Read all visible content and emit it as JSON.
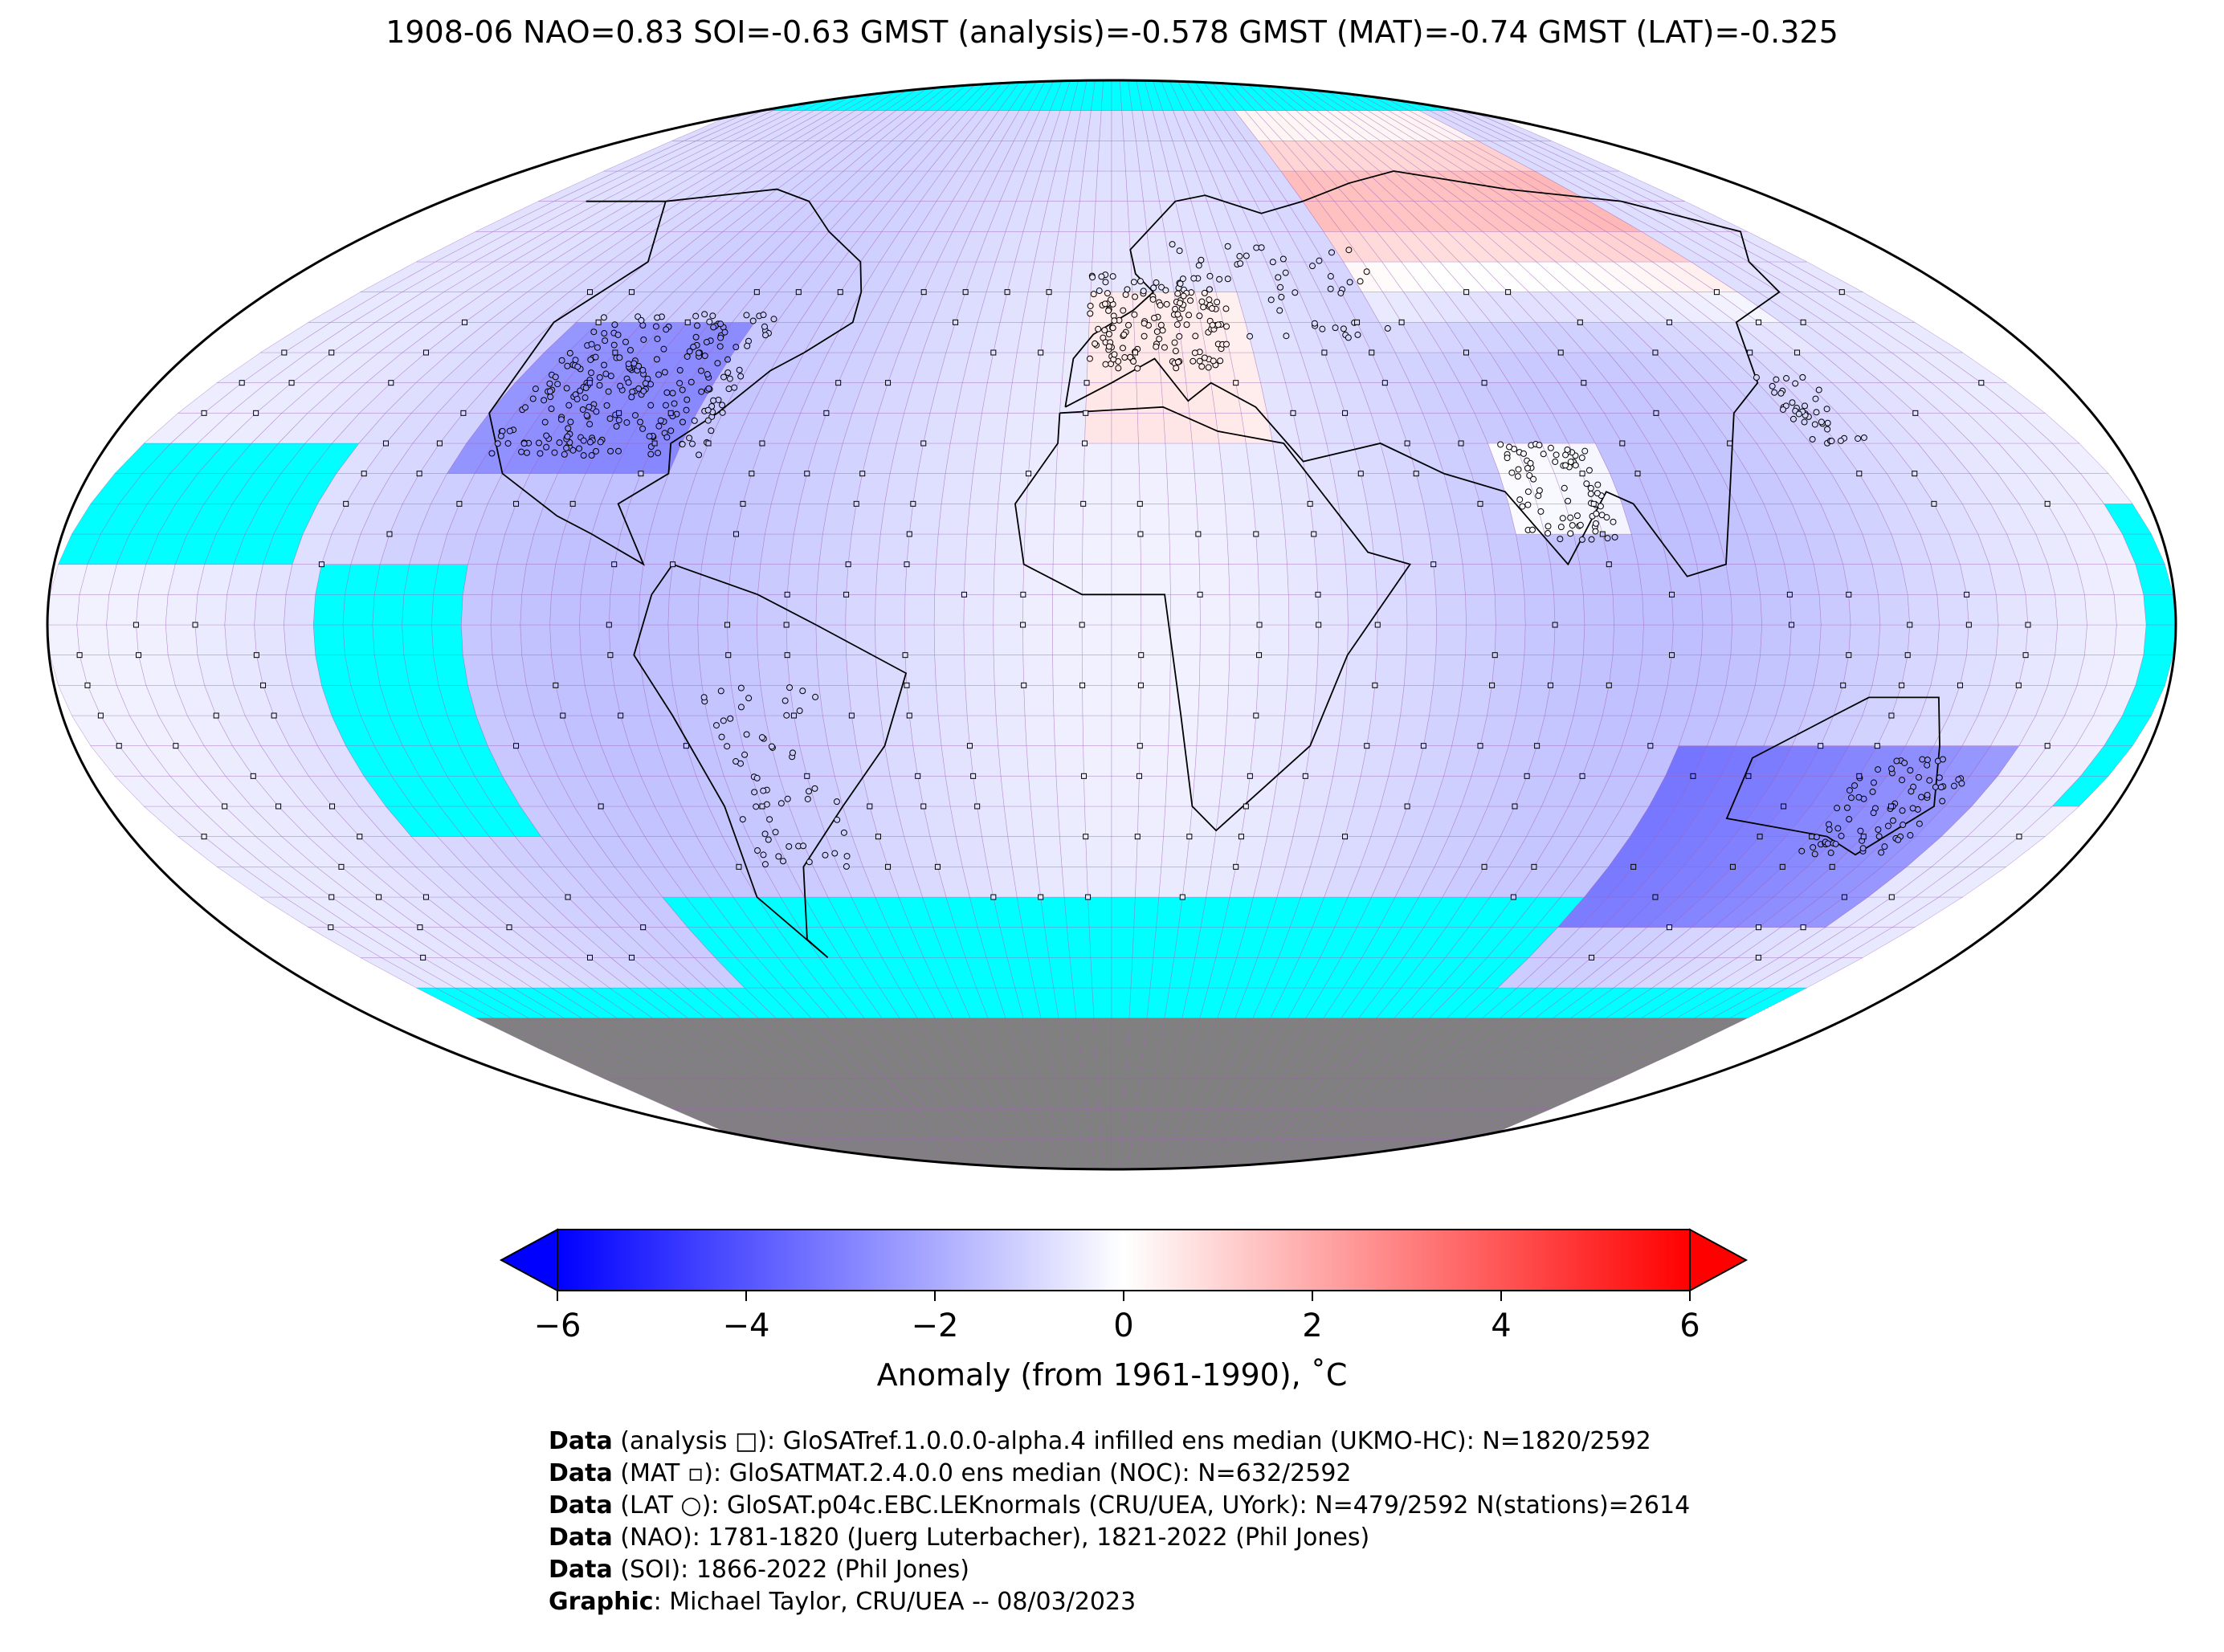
{
  "title": "1908-06 NAO=0.83 SOI=-0.63 GMST (analysis)=-0.578 GMST (MAT)=-0.74 GMST (LAT)=-0.325",
  "colorbar": {
    "label": "Anomaly (from 1961-1990), ˚C",
    "ticks": [
      "−6",
      "−4",
      "−2",
      "0",
      "2",
      "4",
      "6"
    ],
    "range": [
      -6,
      6
    ],
    "colors": {
      "min": "#0000ff",
      "mid": "#ffffff",
      "max": "#ff0000"
    }
  },
  "map": {
    "projection": "Robinson",
    "no_data_color": "#00ffff",
    "land_mask_color": "#808080",
    "grid_line_color": "#9b59b6"
  },
  "credits": [
    {
      "bold": "Data",
      "text": " (analysis □): GloSATref.1.0.0.0-alpha.4 infilled ens median (UKMO-HC): N=1820/2592"
    },
    {
      "bold": "Data",
      "text": " (MAT ▫): GloSATMAT.2.4.0.0 ens median (NOC): N=632/2592"
    },
    {
      "bold": "Data",
      "text": " (LAT ○): GloSAT.p04c.EBC.LEKnormals (CRU/UEA, UYork): N=479/2592 N(stations)=2614"
    },
    {
      "bold": "Data",
      "text": " (NAO): 1781-1820 (Juerg Luterbacher), 1821-2022 (Phil Jones)"
    },
    {
      "bold": "Data",
      "text": " (SOI): 1866-2022 (Phil Jones)"
    },
    {
      "bold": "Graphic",
      "text": ": Michael Taylor, CRU/UEA -- 08/03/2023"
    }
  ]
}
